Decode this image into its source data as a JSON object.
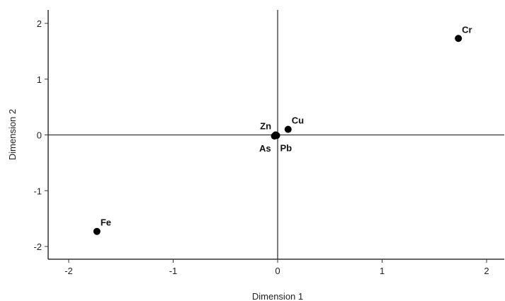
{
  "chart_data": {
    "type": "scatter",
    "title": "",
    "xlabel": "Dimension 1",
    "ylabel": "Dimension 2",
    "xlim": [
      -2.2,
      2.2
    ],
    "ylim": [
      -2.2,
      2.2
    ],
    "xticks": [
      -2,
      -1,
      0,
      1,
      2
    ],
    "yticks": [
      -2,
      -1,
      0,
      1,
      2
    ],
    "xtick_labels": [
      "-2",
      "-1",
      "0",
      "1",
      "2"
    ],
    "ytick_labels": [
      "-2",
      "-1",
      "0",
      "1",
      "2"
    ],
    "grid": false,
    "reference_lines": {
      "x": 0,
      "y": 0
    },
    "points": [
      {
        "label": "Cr",
        "x": 1.73,
        "y": 1.73,
        "label_pos": "above-right"
      },
      {
        "label": "Cu",
        "x": 0.1,
        "y": 0.1,
        "label_pos": "above-right"
      },
      {
        "label": "Zn",
        "x": -0.02,
        "y": 0.0,
        "label_pos": "above-left"
      },
      {
        "label": "As",
        "x": -0.03,
        "y": -0.02,
        "label_pos": "below-left"
      },
      {
        "label": "Pb",
        "x": -0.01,
        "y": -0.01,
        "label_pos": "below-right"
      },
      {
        "label": "Fe",
        "x": -1.73,
        "y": -1.73,
        "label_pos": "above-right"
      }
    ],
    "colors": {
      "marker": "#000000",
      "axis": "#333333"
    }
  }
}
